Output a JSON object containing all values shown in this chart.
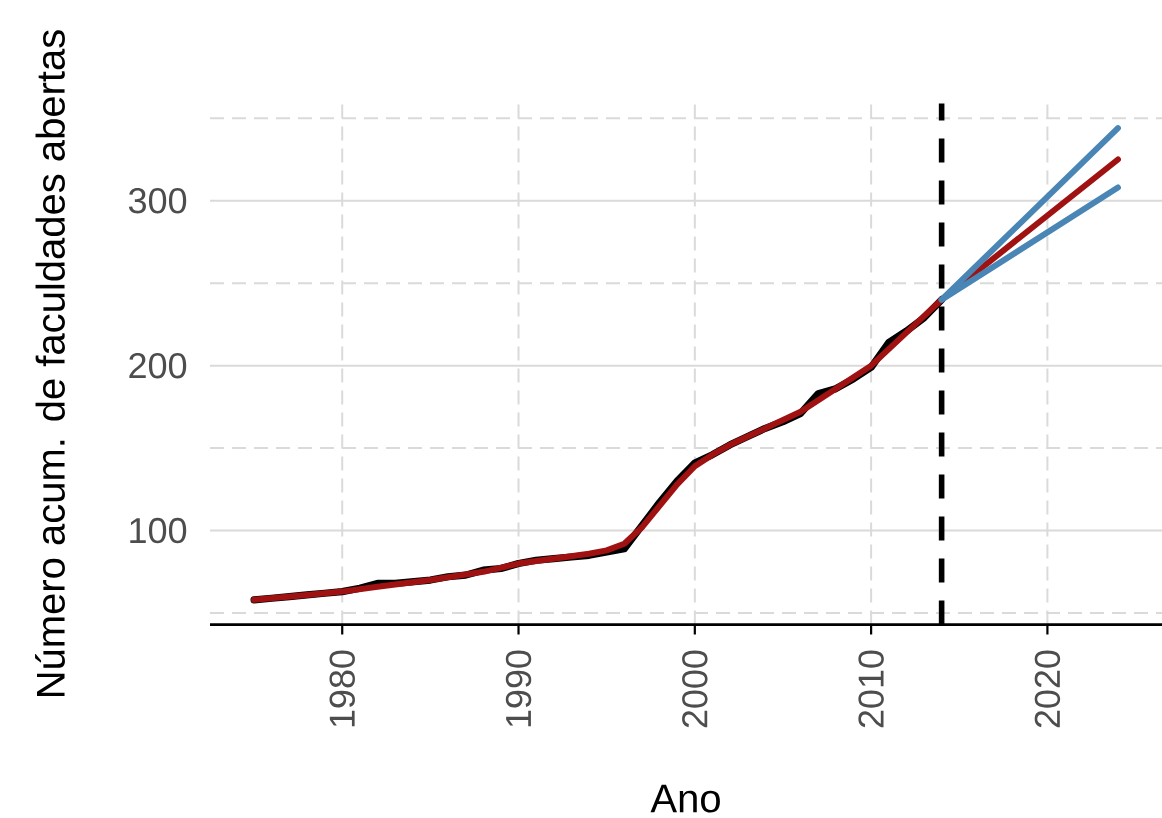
{
  "chart_data": {
    "type": "line",
    "xlabel": "Ano",
    "ylabel": "Número acum. de faculdades abertas",
    "xlim": [
      1972.5,
      2026.5
    ],
    "ylim": [
      43,
      359
    ],
    "xticks": [
      1980,
      1990,
      2000,
      2010,
      2020
    ],
    "yticks": [
      {
        "value": 50,
        "label": null
      },
      100,
      {
        "value": 150,
        "label": null
      },
      200,
      {
        "value": 250,
        "label": null
      },
      300,
      {
        "value": 350,
        "label": null
      }
    ],
    "grid": true,
    "series": [
      {
        "color": "#000000",
        "x": [
          1975,
          1976,
          1977,
          1978,
          1979,
          1980,
          1981,
          1982,
          1983,
          1984,
          1985,
          1986,
          1987,
          1988,
          1989,
          1990,
          1991,
          1992,
          1993,
          1994,
          1995,
          1996,
          1997,
          1998,
          1999,
          2000,
          2001,
          2002,
          2003,
          2004,
          2005,
          2006,
          2007,
          2008,
          2009,
          2010,
          2011,
          2012,
          2013,
          2014
        ],
        "values": [
          58,
          59,
          60,
          61,
          62,
          63,
          65,
          68,
          68,
          69,
          70,
          72,
          73,
          76,
          77,
          80,
          82,
          83,
          84,
          85,
          87,
          89,
          103,
          117,
          130,
          141,
          146,
          152,
          157,
          162,
          166,
          171,
          183,
          186,
          192,
          199,
          214,
          221,
          229,
          240
        ]
      },
      {
        "color": "#a01212",
        "x": [
          1975,
          1978,
          1980,
          1982,
          1985,
          1988,
          1990,
          1992,
          1994,
          1995,
          1996,
          1997,
          1998,
          1999,
          2000,
          2001,
          2002,
          2003,
          2004,
          2005,
          2006,
          2007,
          2008,
          2009,
          2010,
          2011,
          2012,
          2013,
          2014,
          2024
        ],
        "values": [
          58,
          61,
          63,
          66,
          70,
          75,
          80,
          83,
          86,
          88,
          92,
          102,
          115,
          128,
          139,
          146,
          152,
          157,
          162,
          167,
          172,
          179,
          186,
          193,
          200,
          210,
          220,
          230,
          240,
          325
        ]
      },
      {
        "color": "#4a86b5",
        "x": [
          2014,
          2024
        ],
        "values": [
          240,
          344
        ]
      },
      {
        "color": "#4a86b5",
        "x": [
          2014,
          2024
        ],
        "values": [
          240,
          308
        ]
      }
    ],
    "ref_lines": [
      {
        "axis": "x",
        "value": 2014,
        "color": "#000000",
        "line_style": "dashed"
      }
    ]
  }
}
